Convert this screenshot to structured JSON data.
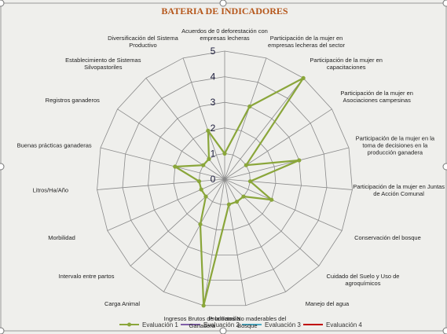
{
  "chart_data": {
    "type": "radar",
    "title": "BATERIA DE INDICADORES",
    "categories": [
      "Acuerdos de 0 deforestación con empresas lecheras",
      "Participación de la mujer en empresas lecheras del sector",
      "Participación de la mujer en capacitaciones",
      "Participación de la mujer en Asociaciones campesinas",
      "Participación de la mujer en la toma de decisiones en la producción ganadera",
      "Participación de la mujer en Juntas de Acción Comunal",
      "Conservación del bosque",
      "Cuidado del Suelo y Uso de agroquímicos",
      "Manejo del agua",
      "Productos No maderables del Bosque",
      "Ingresos Brutos de la Familia Ganadera",
      "Carga Animal",
      "Intervalo entre partos",
      "Morbilidad",
      "Litros/Ha/Año",
      "Buenas prácticas ganaderas",
      "Registros ganaderos",
      "Establecimiento de Sistemas Silvopastoriles",
      "Diversificación del Sistema Productivo"
    ],
    "series": [
      {
        "name": "Evaluación 1",
        "color": "#8aa63a",
        "values": [
          1,
          3,
          5,
          1,
          3,
          1,
          2,
          1,
          1,
          1,
          5,
          2,
          1,
          1,
          1,
          2,
          1,
          1,
          2
        ]
      },
      {
        "name": "Evaluación 2",
        "color": "#7f5fa8",
        "values": [
          null,
          null,
          null,
          null,
          null,
          null,
          null,
          null,
          null,
          null,
          null,
          null,
          null,
          null,
          null,
          null,
          null,
          null,
          null
        ]
      },
      {
        "name": "Evaluación 3",
        "color": "#4bacc6",
        "values": [
          null,
          null,
          null,
          null,
          null,
          null,
          null,
          null,
          null,
          null,
          null,
          null,
          null,
          null,
          null,
          null,
          null,
          null,
          null
        ]
      },
      {
        "name": "Evaluación 4",
        "color": "#c00000",
        "values": [
          null,
          null,
          null,
          null,
          null,
          null,
          null,
          null,
          null,
          null,
          null,
          null,
          null,
          null,
          null,
          null,
          null,
          null,
          null
        ]
      }
    ],
    "ylim": [
      0,
      5
    ],
    "yticks": [
      0,
      1,
      2,
      3,
      4,
      5
    ],
    "grid": true,
    "legend": "bottom"
  }
}
